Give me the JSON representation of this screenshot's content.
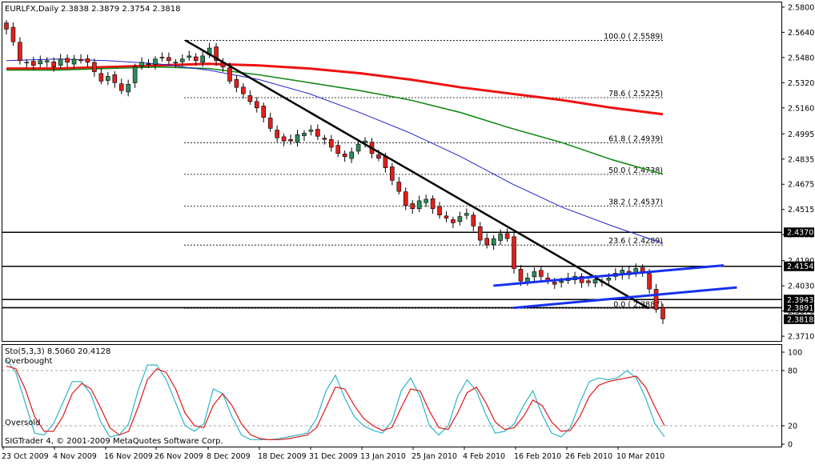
{
  "header": {
    "title": "EURLFX,Daily",
    "ohlc": "2.3838 2.3879 2.3754 2.3818"
  },
  "stoch_header": {
    "label": "Sto(5,3,3) 8.5060 20.4128"
  },
  "labels": {
    "overbought": "Overbought",
    "oversold": "Oversold",
    "copyright": "SIGTrader 4, © 2001-2009 MetaQuotes Software Corp."
  },
  "colors": {
    "bull_candle": "#2e8b57",
    "bear_candle": "#e0201c",
    "ma_red": "#ee1111",
    "ma_green": "#178a17",
    "ma_blue": "#2222cc",
    "trendline": "#000000",
    "channel": "#1630ee",
    "stoch_main": "#2bb5c8",
    "stoch_signal": "#e01818"
  },
  "chart_data": [
    {
      "type": "candlestick",
      "symbol": "EURLFX",
      "timeframe": "Daily",
      "ylim": [
        2.368,
        2.583
      ],
      "y_ticks": [
        "2.5800",
        "2.5640",
        "2.5480",
        "2.5320",
        "2.5160",
        "2.4995",
        "2.4835",
        "2.4675",
        "2.4515",
        "2.4355",
        "2.4190",
        "2.4030",
        "2.3870",
        "2.3710"
      ],
      "x_ticks": [
        "23 Oct 2009",
        "4 Nov 2009",
        "16 Nov 2009",
        "26 Nov 2009",
        "8 Dec 2009",
        "18 Dec 2009",
        "31 Dec 2009",
        "13 Jan 2010",
        "25 Jan 2010",
        "4 Feb 2010",
        "16 Feb 2010",
        "26 Feb 2010",
        "10 Mar 2010"
      ],
      "price_markers": [
        {
          "label": "2.4370",
          "value": 2.437
        },
        {
          "label": "2.4154",
          "value": 2.4154
        },
        {
          "label": "2.3943",
          "value": 2.3943
        },
        {
          "label": "2.3891",
          "value": 2.3891
        },
        {
          "label": "2.3818",
          "value": 2.3818
        }
      ],
      "fibonacci": [
        {
          "label": "100.0 ( 2.5589)",
          "value": 2.5589
        },
        {
          "label": "78.6 ( 2.5225)",
          "value": 2.5225
        },
        {
          "label": "61.8 ( 2.4939)",
          "value": 2.4939
        },
        {
          "label": "50.0 ( 2.4738)",
          "value": 2.4738
        },
        {
          "label": "38.2 ( 2.4537)",
          "value": 2.4537
        },
        {
          "label": "23.6 ( 2.4289)",
          "value": 2.4289
        },
        {
          "label": "0.0 ( 2.3887)",
          "value": 2.3887
        }
      ],
      "horizontal_lines": [
        2.437,
        2.4154,
        2.3943,
        2.3891
      ],
      "close_series": [
        2.566,
        2.558,
        2.546,
        2.545,
        2.543,
        2.546,
        2.546,
        2.542,
        2.547,
        2.545,
        2.547,
        2.546,
        2.545,
        2.539,
        2.533,
        2.536,
        2.532,
        2.527,
        2.531,
        2.542,
        2.545,
        2.544,
        2.547,
        2.548,
        2.546,
        2.545,
        2.547,
        2.549,
        2.546,
        2.549,
        2.554,
        2.546,
        2.542,
        2.533,
        2.529,
        2.525,
        2.52,
        2.516,
        2.51,
        2.503,
        2.497,
        2.495,
        2.495,
        2.499,
        2.5,
        2.502,
        2.498,
        2.496,
        2.491,
        2.487,
        2.485,
        2.488,
        2.493,
        2.495,
        2.487,
        2.484,
        2.478,
        2.47,
        2.463,
        2.454,
        2.452,
        2.457,
        2.458,
        2.452,
        2.448,
        2.446,
        2.443,
        2.447,
        2.449,
        2.441,
        2.432,
        2.429,
        2.433,
        2.436,
        2.433,
        2.414,
        2.406,
        2.408,
        2.412,
        2.409,
        2.406,
        2.404,
        2.406,
        2.408,
        2.409,
        2.405,
        2.405,
        2.407,
        2.406,
        2.408,
        2.411,
        2.413,
        2.41,
        2.414,
        2.412,
        2.401,
        2.388,
        2.382
      ],
      "moving_averages": [
        {
          "color": "red",
          "points": [
            2.541,
            2.541,
            2.542,
            2.543,
            2.544,
            2.543,
            2.541,
            2.538,
            2.534,
            2.529,
            2.525,
            2.521,
            2.516,
            2.512
          ]
        },
        {
          "color": "green",
          "points": [
            2.54,
            2.54,
            2.541,
            2.542,
            2.541,
            2.537,
            2.532,
            2.527,
            2.521,
            2.513,
            2.503,
            2.494,
            2.483,
            2.474
          ]
        },
        {
          "color": "blue",
          "points": [
            2.546,
            2.547,
            2.546,
            2.544,
            2.54,
            2.534,
            2.525,
            2.513,
            2.5,
            2.485,
            2.468,
            2.453,
            2.441,
            2.43
          ]
        }
      ],
      "trendline": {
        "from": [
          0.272,
          2.5589
        ],
        "to": [
          0.976,
          2.3887
        ]
      },
      "channel": {
        "upper": {
          "from": [
            0.74,
            2.4031
          ],
          "to": [
            1.09,
            2.416
          ]
        },
        "lower": {
          "from": [
            0.77,
            2.389
          ],
          "to": [
            1.11,
            2.402
          ]
        }
      }
    },
    {
      "type": "line",
      "indicator": "Stochastic",
      "params": "5,3,3",
      "main": 8.506,
      "signal": 20.4128,
      "ylim": [
        0,
        100
      ],
      "y_ticks": [
        "100",
        "80",
        "20",
        "0"
      ],
      "levels": {
        "overbought": 80,
        "oversold": 20
      },
      "series": [
        {
          "name": "main",
          "values": [
            92,
            78,
            45,
            12,
            10,
            22,
            45,
            68,
            68,
            54,
            25,
            8,
            10,
            22,
            58,
            86,
            86,
            70,
            45,
            20,
            14,
            22,
            60,
            55,
            30,
            10,
            5,
            5,
            5,
            6,
            8,
            10,
            12,
            28,
            58,
            75,
            50,
            30,
            20,
            15,
            12,
            25,
            58,
            72,
            52,
            20,
            10,
            20,
            52,
            70,
            58,
            32,
            12,
            14,
            22,
            42,
            58,
            32,
            12,
            8,
            18,
            45,
            68,
            72,
            70,
            72,
            80,
            72,
            50,
            22,
            8
          ]
        },
        {
          "name": "signal",
          "values": [
            85,
            82,
            60,
            30,
            14,
            14,
            30,
            55,
            66,
            60,
            40,
            18,
            10,
            14,
            40,
            70,
            82,
            78,
            60,
            34,
            20,
            18,
            42,
            55,
            42,
            22,
            10,
            6,
            5,
            5,
            6,
            8,
            10,
            18,
            40,
            62,
            60,
            42,
            28,
            20,
            15,
            18,
            40,
            60,
            58,
            36,
            18,
            16,
            34,
            56,
            62,
            45,
            24,
            16,
            18,
            30,
            48,
            42,
            24,
            14,
            15,
            30,
            52,
            64,
            68,
            70,
            72,
            74,
            62,
            40,
            20
          ]
        }
      ]
    }
  ]
}
